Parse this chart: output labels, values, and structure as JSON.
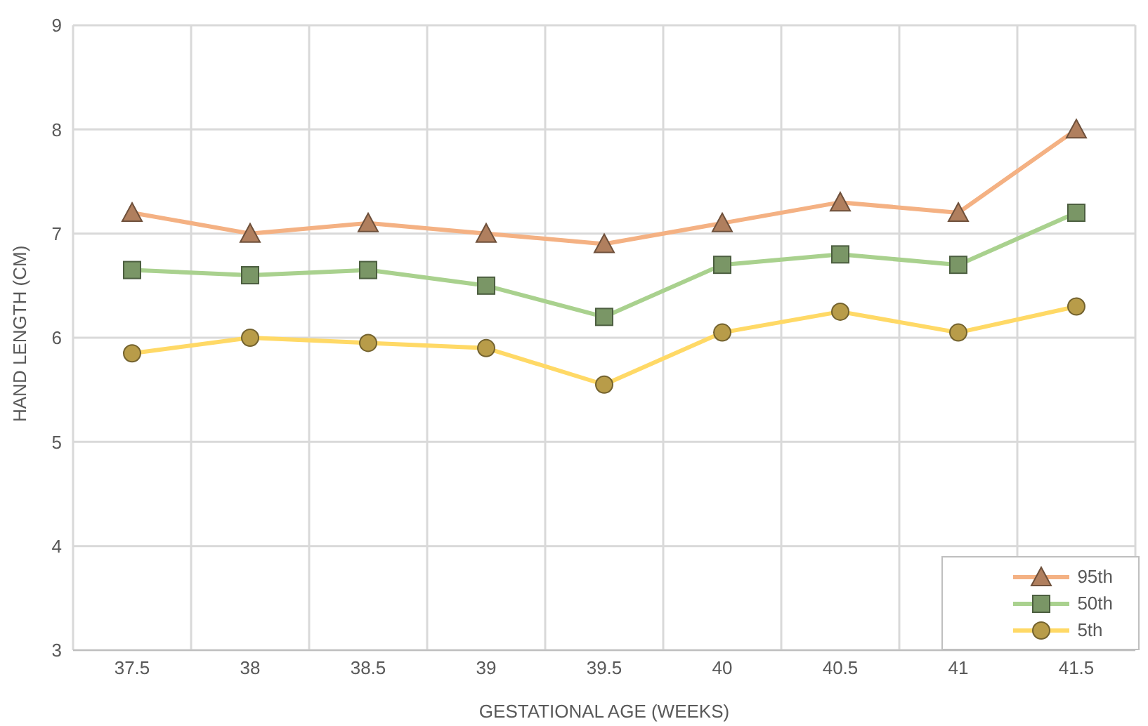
{
  "chart_data": {
    "type": "line",
    "xlabel": "GESTATIONAL AGE (WEEKS)",
    "ylabel": "HAND LENGTH (CM)",
    "categories": [
      "37.5",
      "38",
      "38.5",
      "39",
      "39.5",
      "40",
      "40.5",
      "41",
      "41.5"
    ],
    "ylim": [
      3,
      9
    ],
    "yticks": [
      3,
      4,
      5,
      6,
      7,
      8,
      9
    ],
    "grid": true,
    "legend": "bottom right",
    "series": [
      {
        "name": "95th",
        "color": "#f4b183",
        "marker": "triangle",
        "values": [
          7.2,
          7.0,
          7.1,
          7.0,
          6.9,
          7.1,
          7.3,
          7.2,
          8.0
        ]
      },
      {
        "name": "50th",
        "color": "#a9d18e",
        "marker": "square",
        "values": [
          6.65,
          6.6,
          6.65,
          6.5,
          6.2,
          6.7,
          6.8,
          6.7,
          7.2
        ]
      },
      {
        "name": "5th",
        "color": "#ffd966",
        "marker": "circle",
        "values": [
          5.85,
          6.0,
          5.95,
          5.9,
          5.55,
          6.05,
          6.25,
          6.05,
          6.3
        ]
      }
    ]
  }
}
